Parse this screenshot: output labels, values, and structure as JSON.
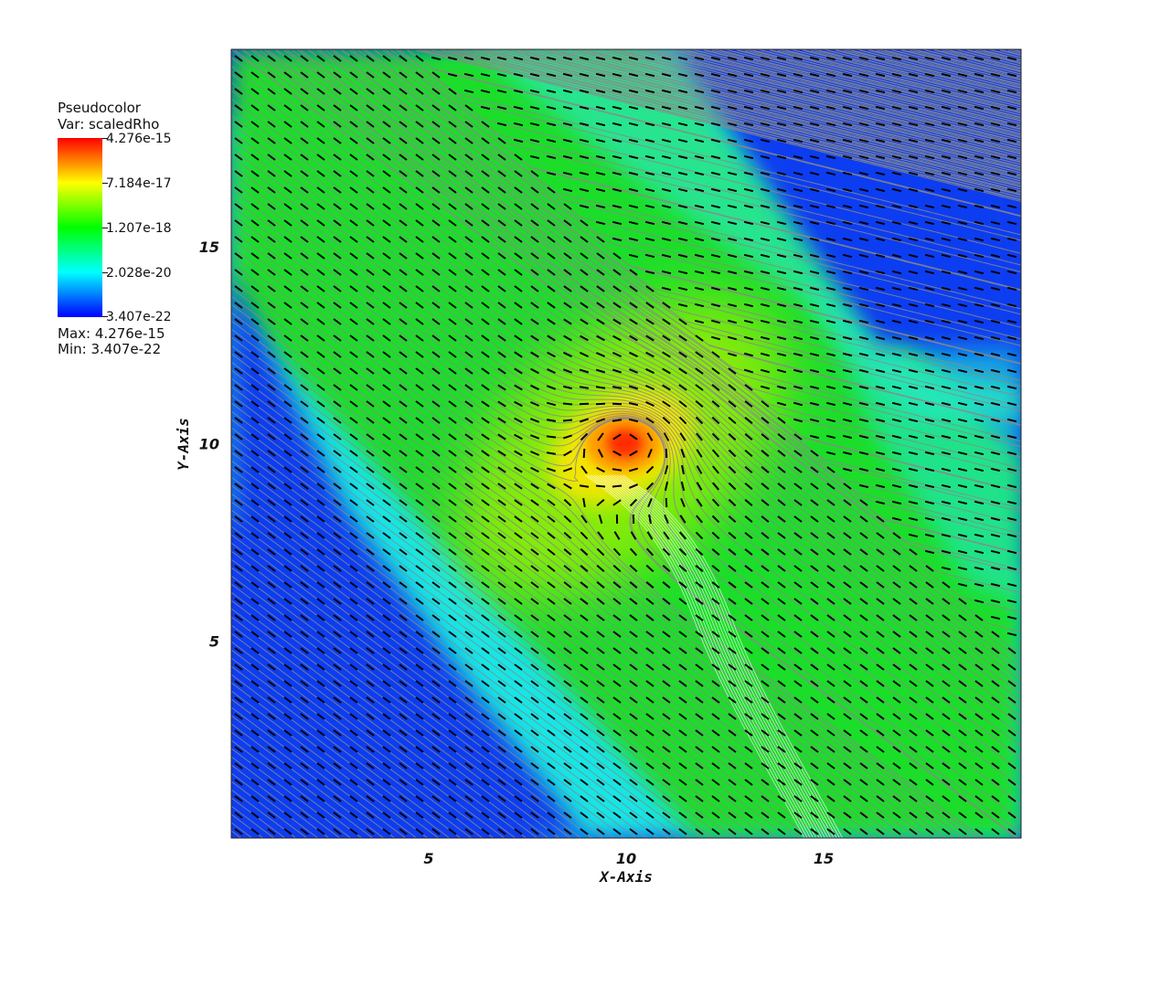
{
  "legend": {
    "title": "Pseudocolor",
    "var_line": "Var: scaledRho",
    "max_line": "Max: 4.276e-15",
    "min_line": "Min: 3.407e-22",
    "levels": [
      "4.276e-15",
      "7.184e-17",
      "1.207e-18",
      "2.028e-20",
      "3.407e-22"
    ],
    "colormap": [
      "#ff0000",
      "#ffff00",
      "#00ff00",
      "#00ffff",
      "#0000ff"
    ]
  },
  "chart_data": {
    "type": "heatmap",
    "title": "",
    "xlabel": "X-Axis",
    "ylabel": "Y-Axis",
    "xlim": [
      0,
      20
    ],
    "ylim": [
      0,
      20
    ],
    "x_ticks": [
      5,
      10,
      15
    ],
    "y_ticks": [
      5,
      10,
      15
    ],
    "variable": "scaledRho",
    "value_range": [
      3.407e-22,
      4.276e-15
    ],
    "peak_location": [
      10,
      10
    ],
    "overlays": [
      "streamlines",
      "vector glyphs"
    ],
    "grid": false
  }
}
